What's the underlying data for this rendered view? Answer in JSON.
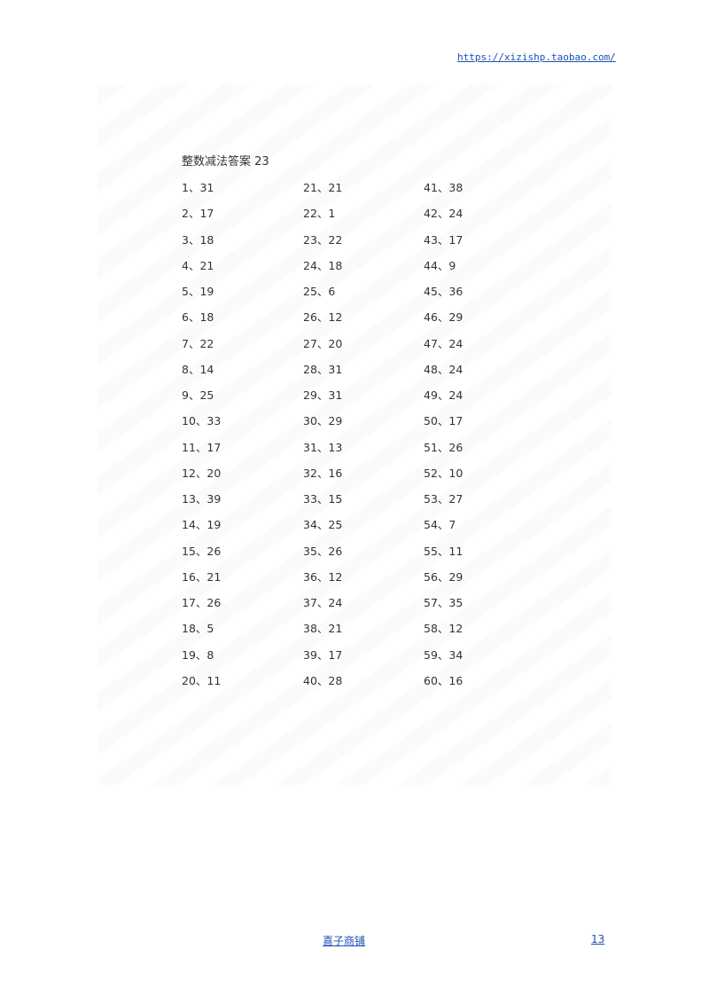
{
  "header": {
    "url": "https://xizishp.taobao.com/"
  },
  "title": "整数减法答案 23",
  "answers": [
    {
      "n": 1,
      "a": 31
    },
    {
      "n": 2,
      "a": 17
    },
    {
      "n": 3,
      "a": 18
    },
    {
      "n": 4,
      "a": 21
    },
    {
      "n": 5,
      "a": 19
    },
    {
      "n": 6,
      "a": 18
    },
    {
      "n": 7,
      "a": 22
    },
    {
      "n": 8,
      "a": 14
    },
    {
      "n": 9,
      "a": 25
    },
    {
      "n": 10,
      "a": 33
    },
    {
      "n": 11,
      "a": 17
    },
    {
      "n": 12,
      "a": 20
    },
    {
      "n": 13,
      "a": 39
    },
    {
      "n": 14,
      "a": 19
    },
    {
      "n": 15,
      "a": 26
    },
    {
      "n": 16,
      "a": 21
    },
    {
      "n": 17,
      "a": 26
    },
    {
      "n": 18,
      "a": 5
    },
    {
      "n": 19,
      "a": 8
    },
    {
      "n": 20,
      "a": 11
    },
    {
      "n": 21,
      "a": 21
    },
    {
      "n": 22,
      "a": 1
    },
    {
      "n": 23,
      "a": 22
    },
    {
      "n": 24,
      "a": 18
    },
    {
      "n": 25,
      "a": 6
    },
    {
      "n": 26,
      "a": 12
    },
    {
      "n": 27,
      "a": 20
    },
    {
      "n": 28,
      "a": 31
    },
    {
      "n": 29,
      "a": 31
    },
    {
      "n": 30,
      "a": 29
    },
    {
      "n": 31,
      "a": 13
    },
    {
      "n": 32,
      "a": 16
    },
    {
      "n": 33,
      "a": 15
    },
    {
      "n": 34,
      "a": 25
    },
    {
      "n": 35,
      "a": 26
    },
    {
      "n": 36,
      "a": 12
    },
    {
      "n": 37,
      "a": 24
    },
    {
      "n": 38,
      "a": 21
    },
    {
      "n": 39,
      "a": 17
    },
    {
      "n": 40,
      "a": 28
    },
    {
      "n": 41,
      "a": 38
    },
    {
      "n": 42,
      "a": 24
    },
    {
      "n": 43,
      "a": 17
    },
    {
      "n": 44,
      "a": 9
    },
    {
      "n": 45,
      "a": 36
    },
    {
      "n": 46,
      "a": 29
    },
    {
      "n": 47,
      "a": 24
    },
    {
      "n": 48,
      "a": 24
    },
    {
      "n": 49,
      "a": 24
    },
    {
      "n": 50,
      "a": 17
    },
    {
      "n": 51,
      "a": 26
    },
    {
      "n": 52,
      "a": 10
    },
    {
      "n": 53,
      "a": 27
    },
    {
      "n": 54,
      "a": 7
    },
    {
      "n": 55,
      "a": 11
    },
    {
      "n": 56,
      "a": 29
    },
    {
      "n": 57,
      "a": 35
    },
    {
      "n": 58,
      "a": 12
    },
    {
      "n": 59,
      "a": 34
    },
    {
      "n": 60,
      "a": 16
    }
  ],
  "footer": {
    "shop": "喜子商铺",
    "page": "13"
  }
}
